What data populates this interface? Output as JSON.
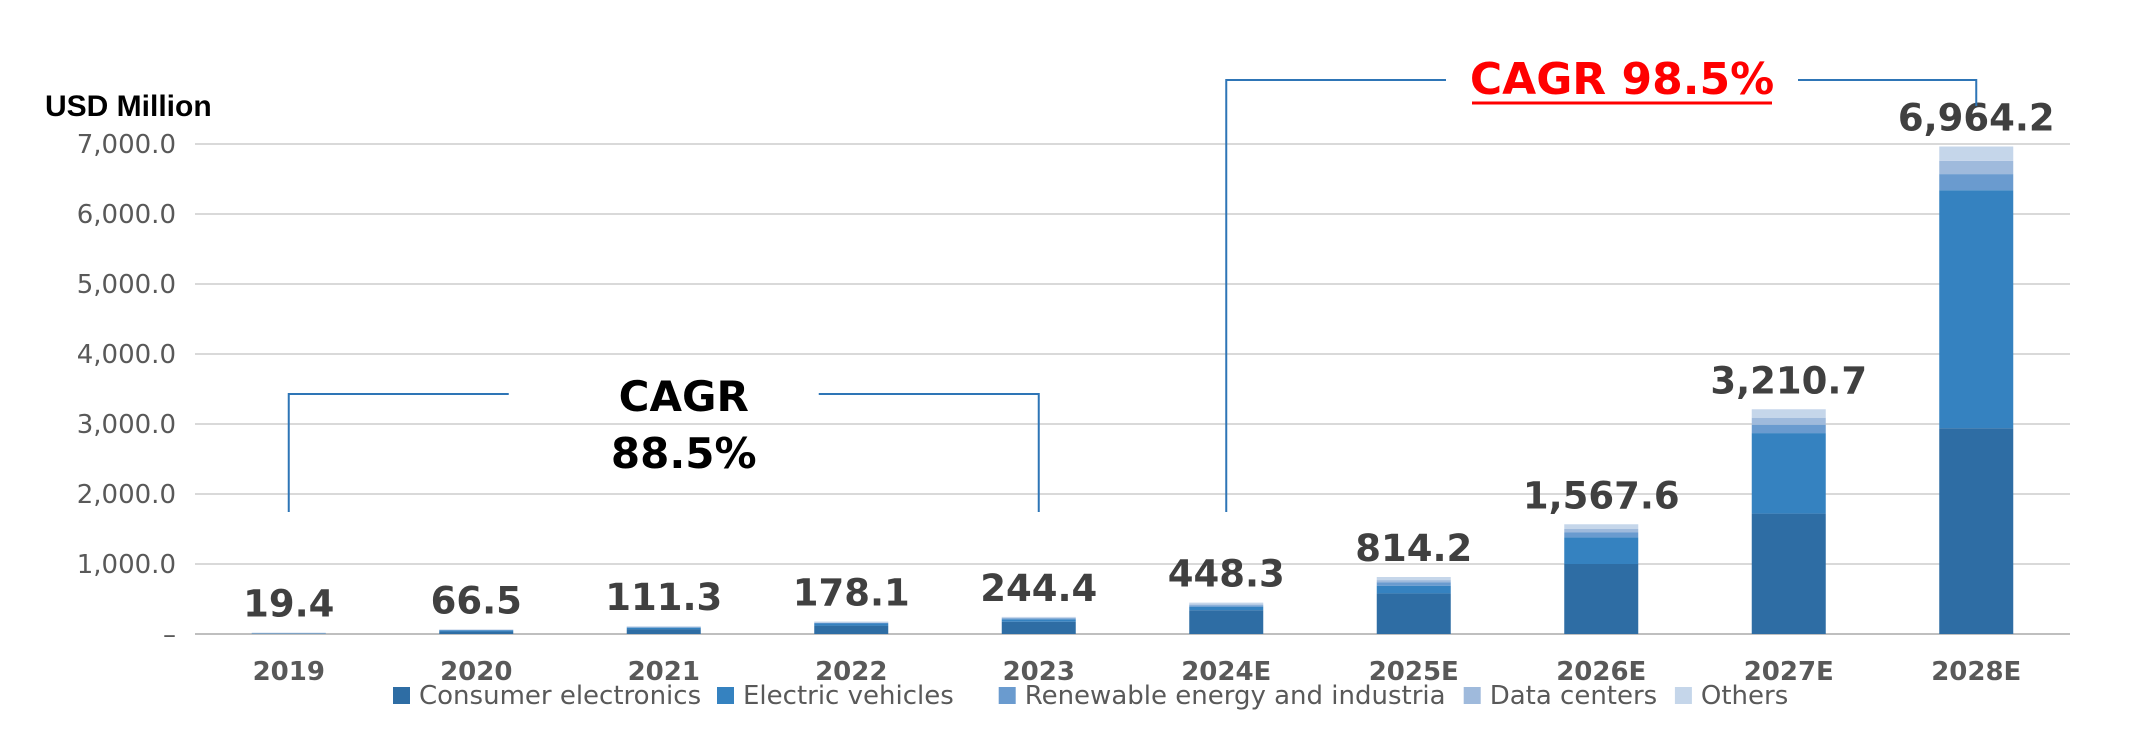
{
  "chart_data": {
    "type": "bar",
    "stacked": true,
    "title": "",
    "ylabel": "USD Million",
    "xlabel": "",
    "ylim": [
      0,
      7000
    ],
    "yticks": [
      "–",
      "1,000.0",
      "2,000.0",
      "3,000.0",
      "4,000.0",
      "5,000.0",
      "6,000.0",
      "7,000.0"
    ],
    "categories": [
      "2019",
      "2020",
      "2021",
      "2022",
      "2023",
      "2024E",
      "2025E",
      "2026E",
      "2027E",
      "2028E"
    ],
    "totals": [
      19.4,
      66.5,
      111.3,
      178.1,
      244.4,
      448.3,
      814.2,
      1567.6,
      3210.7,
      6964.2
    ],
    "total_labels": [
      "19.4",
      "66.5",
      "111.3",
      "178.1",
      "244.4",
      "448.3",
      "814.2",
      "1,567.6",
      "3,210.7",
      "6,964.2"
    ],
    "series": [
      {
        "name": "Consumer electronics",
        "color": "#2e6da4",
        "values": [
          5,
          35,
          70,
          120,
          175,
          340,
          580,
          1000,
          1720,
          2940
        ]
      },
      {
        "name": "Electric vehicles",
        "color": "#3582c0",
        "values": [
          3,
          15,
          20,
          30,
          35,
          50,
          110,
          380,
          1150,
          3400
        ]
      },
      {
        "name": "Renewable energy and industria",
        "color": "#6a9bcf",
        "values": [
          2,
          6,
          8,
          10,
          14,
          20,
          50,
          70,
          120,
          230
        ]
      },
      {
        "name": "Data centers",
        "color": "#9fbadc",
        "values": [
          1,
          4,
          5,
          6,
          8,
          13,
          30,
          50,
          100,
          190
        ]
      },
      {
        "name": "Others",
        "color": "#c5d6ea",
        "values": [
          8.4,
          6.5,
          8.3,
          12.1,
          12.4,
          25.3,
          44.2,
          67.6,
          120.7,
          204.2
        ]
      }
    ],
    "grid": true,
    "legend_position": "bottom",
    "annotations": [
      {
        "text_lines": [
          "CAGR",
          "88.5%"
        ],
        "from": "2019",
        "to": "2023",
        "color": "#000000"
      },
      {
        "text_lines": [
          "CAGR 98.5%"
        ],
        "from": "2024E",
        "to": "2028E",
        "color": "#ff0000",
        "underline": true
      }
    ],
    "bracket_color": "#2e75b6"
  }
}
